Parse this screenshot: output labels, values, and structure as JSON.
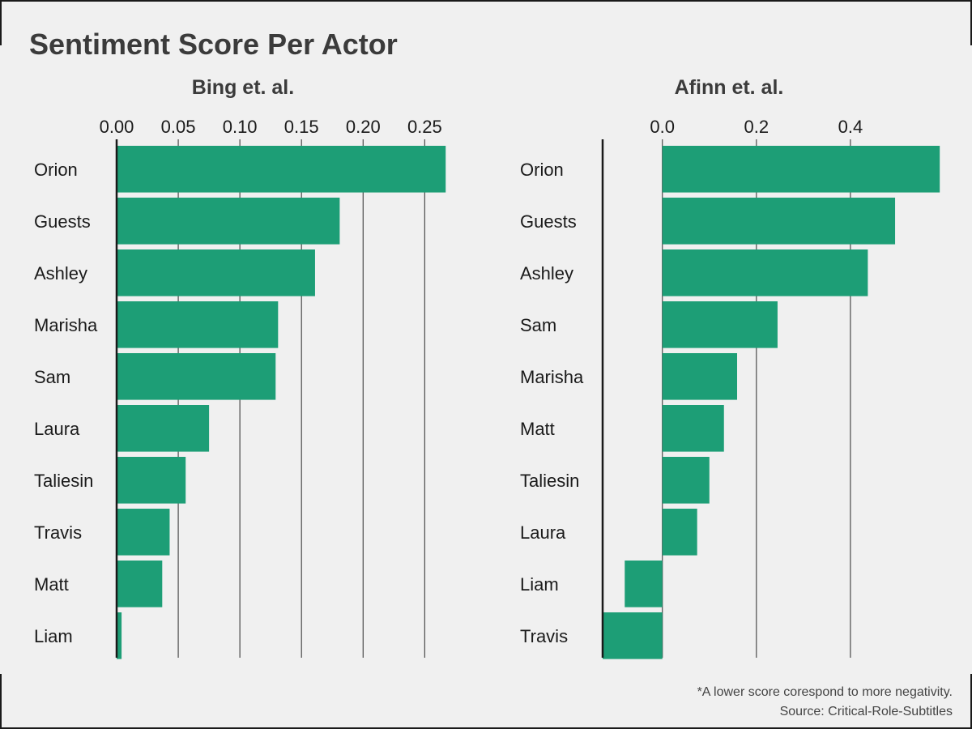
{
  "title": "Sentiment Score Per Actor",
  "footnote": "*A lower score corespond to more negativity.",
  "source": "Source: Critical-Role-Subtitles",
  "colors": {
    "bar": "#1d9e76",
    "background": "#f0f0f0",
    "grid": "#4a4a4a",
    "text": "#1a1a1a"
  },
  "chart_data": [
    {
      "type": "bar",
      "orientation": "horizontal",
      "title": "Bing et. al.",
      "categories": [
        "Orion",
        "Guests",
        "Ashley",
        "Marisha",
        "Sam",
        "Laura",
        "Taliesin",
        "Travis",
        "Matt",
        "Liam"
      ],
      "values": [
        0.267,
        0.181,
        0.161,
        0.131,
        0.129,
        0.075,
        0.056,
        0.043,
        0.037,
        0.004
      ],
      "xlim": [
        0,
        0.28
      ],
      "ticks": [
        0.0,
        0.05,
        0.1,
        0.15,
        0.2,
        0.25
      ],
      "tick_labels": [
        "0.00",
        "0.05",
        "0.10",
        "0.15",
        "0.20",
        "0.25"
      ],
      "grid": true,
      "axis_position": "top"
    },
    {
      "type": "bar",
      "orientation": "horizontal",
      "title": "Afinn et. al.",
      "categories": [
        "Orion",
        "Guests",
        "Ashley",
        "Sam",
        "Marisha",
        "Matt",
        "Taliesin",
        "Laura",
        "Liam",
        "Travis"
      ],
      "values": [
        0.59,
        0.495,
        0.437,
        0.245,
        0.159,
        0.131,
        0.1,
        0.074,
        -0.08,
        -0.127
      ],
      "xlim": [
        -0.127,
        0.6
      ],
      "ticks": [
        0.0,
        0.2,
        0.4
      ],
      "tick_labels": [
        "0.0",
        "0.2",
        "0.4"
      ],
      "grid": true,
      "axis_position": "top"
    }
  ]
}
